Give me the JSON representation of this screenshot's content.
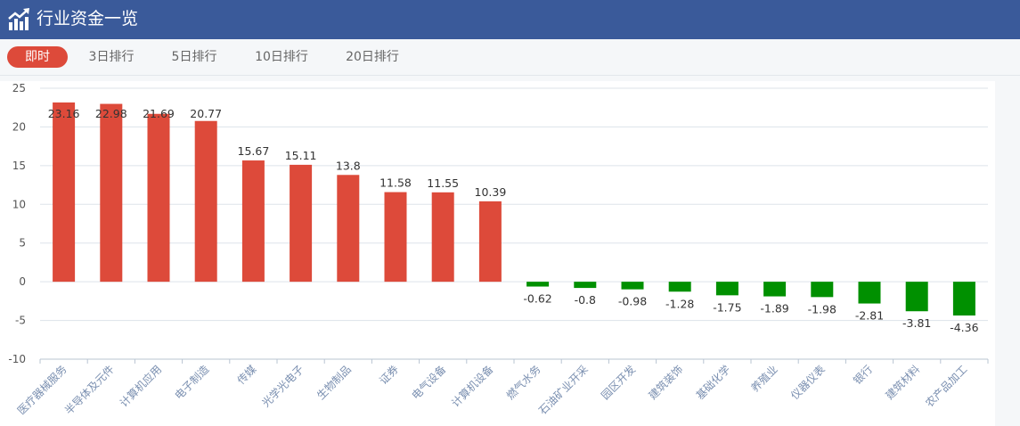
{
  "header": {
    "title": "行业资金一览",
    "icon": "trending-up-chart-icon"
  },
  "tabs": [
    {
      "label": "即时",
      "active": true
    },
    {
      "label": "3日排行",
      "active": false
    },
    {
      "label": "5日排行",
      "active": false
    },
    {
      "label": "10日排行",
      "active": false
    },
    {
      "label": "20日排行",
      "active": false
    }
  ],
  "colors": {
    "header_bg": "#3a5a9a",
    "positive": "#dd4a3a",
    "negative": "#009000",
    "active_tab": "#dd4a3a"
  },
  "chart_data": {
    "type": "bar",
    "categories": [
      "医疗器械服务",
      "半导体及元件",
      "计算机应用",
      "电子制造",
      "传媒",
      "光学光电子",
      "生物制品",
      "证券",
      "电气设备",
      "计算机设备",
      "燃气水务",
      "石油矿业开采",
      "园区开发",
      "建筑装饰",
      "基础化学",
      "养殖业",
      "仪器仪表",
      "银行",
      "建筑材料",
      "农产品加工"
    ],
    "values": [
      23.16,
      22.98,
      21.69,
      20.77,
      15.67,
      15.11,
      13.8,
      11.58,
      11.55,
      10.39,
      -0.62,
      -0.8,
      -0.98,
      -1.28,
      -1.75,
      -1.89,
      -1.98,
      -2.81,
      -3.81,
      -4.36
    ],
    "value_labels": [
      "23.16",
      "22.98",
      "21.69",
      "20.77",
      "15.67",
      "15.11",
      "13.8",
      "11.58",
      "11.55",
      "10.39",
      "-0.62",
      "-0.8",
      "-0.98",
      "-1.28",
      "-1.75",
      "-1.89",
      "-1.98",
      "-2.81",
      "-3.81",
      "-4.36"
    ],
    "ylim": [
      -10,
      25
    ],
    "yticks": [
      "25",
      "20",
      "15",
      "10",
      "5",
      "0",
      "-5",
      "-10"
    ],
    "grid": true,
    "title": "",
    "xlabel": "",
    "ylabel": ""
  }
}
